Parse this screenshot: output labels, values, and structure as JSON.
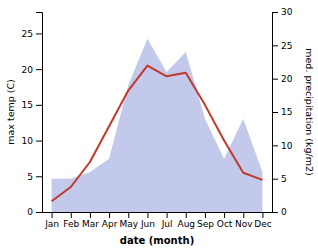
{
  "chart_data": {
    "type": "line",
    "categories": [
      "Jan",
      "Feb",
      "Mar",
      "Apr",
      "May",
      "Jun",
      "Jul",
      "Aug",
      "Sep",
      "Oct",
      "Nov",
      "Dec"
    ],
    "series": [
      {
        "type": "area",
        "axis": "y2",
        "color": "#b8bfe8",
        "values": [
          5.0,
          5.0,
          6.0,
          8.0,
          19.0,
          26.0,
          21.0,
          24.0,
          14.0,
          8.0,
          14.0,
          6.0
        ]
      },
      {
        "type": "line",
        "color": "#c0392b",
        "values": [
          1.5,
          3.5,
          7.0,
          12.0,
          17.0,
          20.5,
          19.0,
          19.5,
          15.0,
          10.0,
          5.5,
          4.5
        ]
      }
    ],
    "xlabel": "date (month)",
    "ylabel": "max temp (C)",
    "y2label": "med. precipitation (kg/m2)",
    "ylim": [
      0,
      28
    ],
    "yticks": [
      0,
      5,
      10,
      15,
      20,
      25
    ],
    "y2lim": [
      0,
      30
    ],
    "y2ticks": [
      0,
      5,
      10,
      15,
      20,
      25,
      30
    ]
  }
}
